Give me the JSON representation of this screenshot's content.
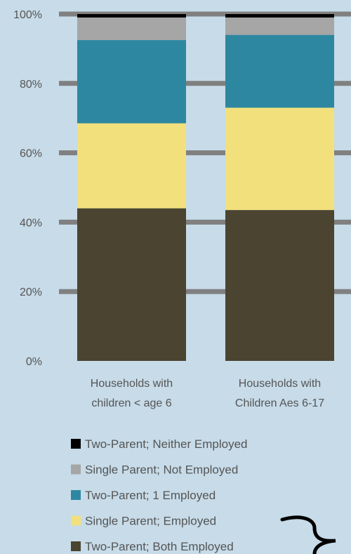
{
  "chart_data": {
    "type": "bar",
    "stacked": true,
    "categories": [
      "Households with children < age 6",
      "Households with Children Aes 6-17"
    ],
    "category_lines": [
      [
        "Households with",
        "children < age 6"
      ],
      [
        "Households with",
        "Children Aes 6-17"
      ]
    ],
    "series": [
      {
        "name": "Two-Parent; Both Employed",
        "color": "#4a4430",
        "values": [
          44,
          43.5
        ]
      },
      {
        "name": "Single Parent; Employed",
        "color": "#f2e07d",
        "values": [
          24.5,
          29.5
        ]
      },
      {
        "name": "Two-Parent; 1 Employed",
        "color": "#2e87a0",
        "values": [
          24,
          21
        ]
      },
      {
        "name": "Single Parent; Not Employed",
        "color": "#a6a6a6",
        "values": [
          6.5,
          5
        ]
      },
      {
        "name": "Two-Parent; Neither Employed",
        "color": "#000000",
        "values": [
          1,
          1
        ]
      }
    ],
    "y_ticks": [
      "0%",
      "20%",
      "40%",
      "60%",
      "80%",
      "100%"
    ],
    "y_tick_values": [
      0,
      20,
      40,
      60,
      80,
      100
    ],
    "ylim": [
      0,
      100
    ],
    "grid": true,
    "legend_position": "bottom",
    "legend_order": "reverse"
  }
}
